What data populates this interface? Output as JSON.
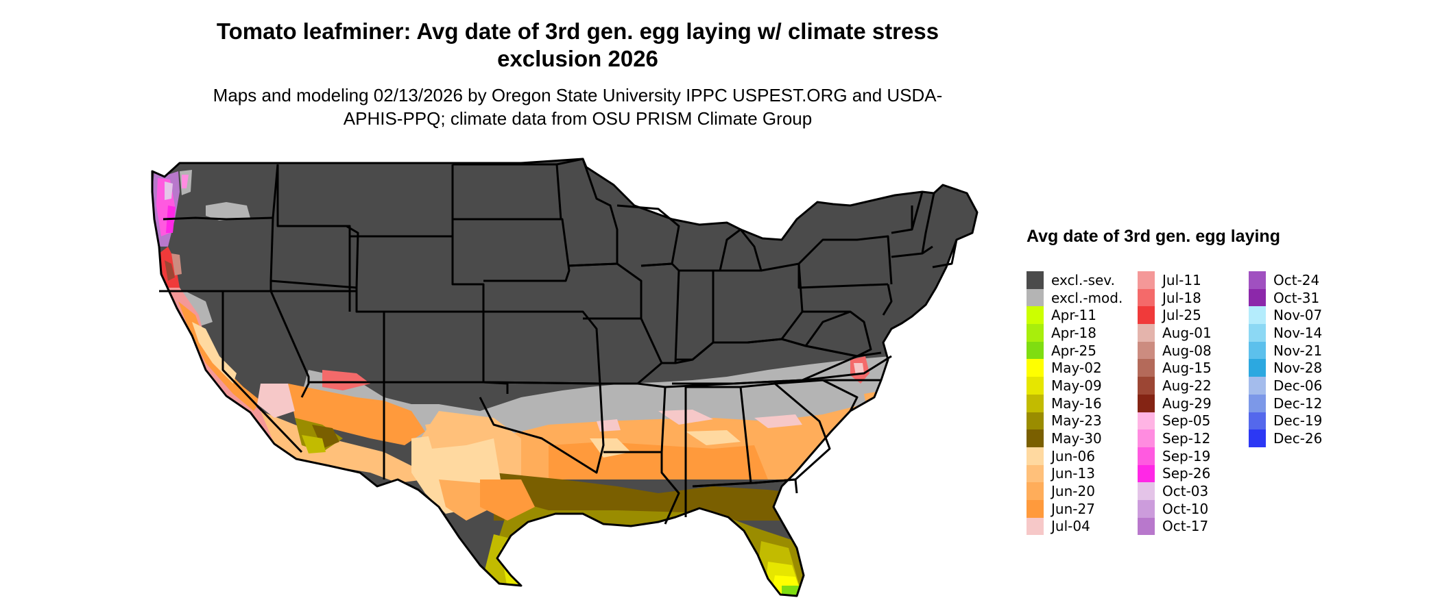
{
  "title": "Tomato leafminer: Avg date of 3rd gen. egg laying w/ climate stress exclusion 2026",
  "subtitle": "Maps and modeling 02/13/2026 by Oregon State University IPPC USPEST.ORG and USDA-APHIS-PPQ; climate data from OSU PRISM Climate Group",
  "legend": {
    "title": "Avg date of 3rd gen. egg laying",
    "columns": [
      [
        {
          "label": "excl.-sev.",
          "color": "#4b4b4b"
        },
        {
          "label": "excl.-mod.",
          "color": "#b4b4b4"
        },
        {
          "label": "Apr-11",
          "color": "#ccff00"
        },
        {
          "label": "Apr-18",
          "color": "#a8ee0c"
        },
        {
          "label": "Apr-25",
          "color": "#7fdd11"
        },
        {
          "label": "May-02",
          "color": "#ffff00"
        },
        {
          "label": "May-09",
          "color": "#e6e600"
        },
        {
          "label": "May-16",
          "color": "#c2bb00"
        },
        {
          "label": "May-23",
          "color": "#9a8c00"
        },
        {
          "label": "May-30",
          "color": "#7a5f00"
        },
        {
          "label": "Jun-06",
          "color": "#ffd9a0"
        },
        {
          "label": "Jun-13",
          "color": "#ffc07a"
        },
        {
          "label": "Jun-20",
          "color": "#ffad5a"
        },
        {
          "label": "Jun-27",
          "color": "#ff9a3c"
        },
        {
          "label": "Jul-04",
          "color": "#f6c8c8"
        }
      ],
      [
        {
          "label": "Jul-11",
          "color": "#f49898"
        },
        {
          "label": "Jul-18",
          "color": "#f46a6a"
        },
        {
          "label": "Jul-25",
          "color": "#f03a3a"
        },
        {
          "label": "Aug-01",
          "color": "#e4b4ac"
        },
        {
          "label": "Aug-08",
          "color": "#cc8c80"
        },
        {
          "label": "Aug-15",
          "color": "#b46a5a"
        },
        {
          "label": "Aug-22",
          "color": "#9c4634"
        },
        {
          "label": "Aug-29",
          "color": "#842414"
        },
        {
          "label": "Sep-05",
          "color": "#ffb4e4"
        },
        {
          "label": "Sep-12",
          "color": "#ff8ce0"
        },
        {
          "label": "Sep-19",
          "color": "#ff5ae0"
        },
        {
          "label": "Sep-26",
          "color": "#ff28e6"
        },
        {
          "label": "Oct-03",
          "color": "#e4c4e8"
        },
        {
          "label": "Oct-10",
          "color": "#cc9cdc"
        },
        {
          "label": "Oct-17",
          "color": "#b878cc"
        }
      ],
      [
        {
          "label": "Oct-24",
          "color": "#a050c0"
        },
        {
          "label": "Oct-31",
          "color": "#8c28aa"
        },
        {
          "label": "Nov-07",
          "color": "#b4ecfc"
        },
        {
          "label": "Nov-14",
          "color": "#8cd8f4"
        },
        {
          "label": "Nov-21",
          "color": "#5cc0ec"
        },
        {
          "label": "Nov-28",
          "color": "#2ca8e0"
        },
        {
          "label": "Dec-06",
          "color": "#a4bcec"
        },
        {
          "label": "Dec-12",
          "color": "#7c98e8"
        },
        {
          "label": "Dec-19",
          "color": "#5468ec"
        },
        {
          "label": "Dec-26",
          "color": "#2c38f4"
        }
      ]
    ]
  }
}
